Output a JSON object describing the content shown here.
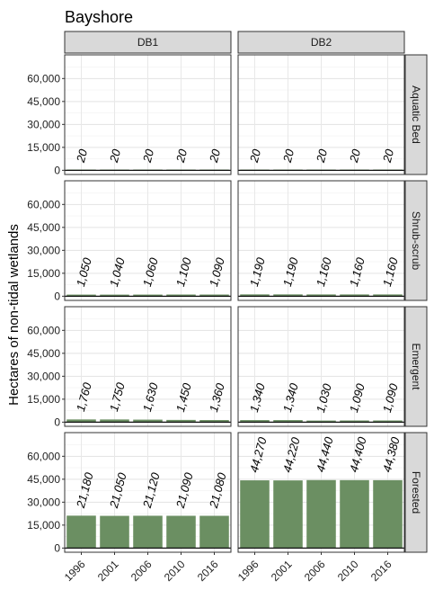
{
  "chart_data": {
    "type": "bar",
    "title": "Bayshore",
    "ylabel": "Hectares of non-tidal wetlands",
    "xlabel": "",
    "categories": [
      "1996",
      "2001",
      "2006",
      "2010",
      "2016"
    ],
    "columns": [
      "DB1",
      "DB2"
    ],
    "rows": [
      "Aquatic Bed",
      "Shrub-scrub",
      "Emergent",
      "Forested"
    ],
    "ylim": [
      0,
      70000
    ],
    "y_ticks": [
      0,
      15000,
      30000,
      45000,
      60000
    ],
    "y_tick_labels": [
      "0",
      "15,000",
      "30,000",
      "45,000",
      "60,000"
    ],
    "grid": true,
    "bar_color": "#6b8f62",
    "panels": [
      {
        "column": "DB1",
        "row": "Aquatic Bed",
        "values": [
          20,
          20,
          20,
          20,
          20
        ],
        "labels": [
          "20",
          "20",
          "20",
          "20",
          "20"
        ]
      },
      {
        "column": "DB2",
        "row": "Aquatic Bed",
        "values": [
          20,
          20,
          20,
          20,
          20
        ],
        "labels": [
          "20",
          "20",
          "20",
          "20",
          "20"
        ]
      },
      {
        "column": "DB1",
        "row": "Shrub-scrub",
        "values": [
          1050,
          1040,
          1060,
          1100,
          1090
        ],
        "labels": [
          "1,050",
          "1,040",
          "1,060",
          "1,100",
          "1,090"
        ]
      },
      {
        "column": "DB2",
        "row": "Shrub-scrub",
        "values": [
          1190,
          1190,
          1160,
          1160,
          1160
        ],
        "labels": [
          "1,190",
          "1,190",
          "1,160",
          "1,160",
          "1,160"
        ]
      },
      {
        "column": "DB1",
        "row": "Emergent",
        "values": [
          1760,
          1750,
          1630,
          1450,
          1360
        ],
        "labels": [
          "1,760",
          "1,750",
          "1,630",
          "1,450",
          "1,360"
        ]
      },
      {
        "column": "DB2",
        "row": "Emergent",
        "values": [
          1340,
          1340,
          1030,
          1090,
          1090
        ],
        "labels": [
          "1,340",
          "1,340",
          "1,030",
          "1,090",
          "1,090"
        ]
      },
      {
        "column": "DB1",
        "row": "Forested",
        "values": [
          21180,
          21050,
          21120,
          21090,
          21080
        ],
        "labels": [
          "21,180",
          "21,050",
          "21,120",
          "21,090",
          "21,080"
        ]
      },
      {
        "column": "DB2",
        "row": "Forested",
        "values": [
          44270,
          44220,
          44440,
          44400,
          44380
        ],
        "labels": [
          "44,270",
          "44,220",
          "44,440",
          "44,400",
          "44,380"
        ]
      }
    ]
  }
}
